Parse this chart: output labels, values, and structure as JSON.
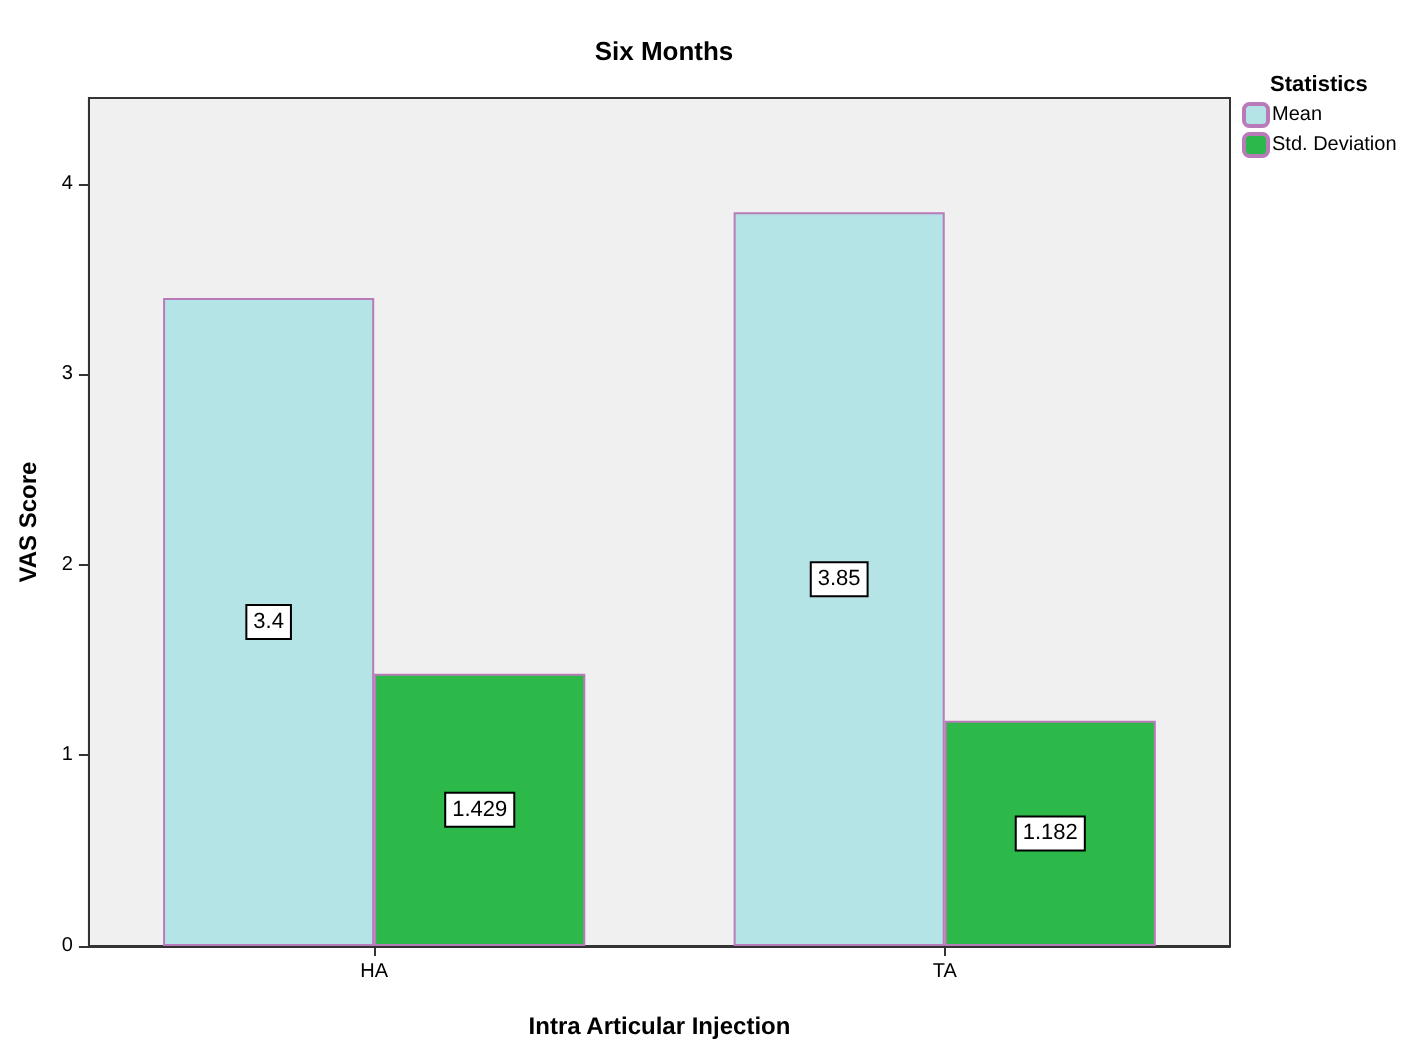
{
  "chart_data": {
    "type": "bar",
    "title": "Six Months",
    "xlabel": "Intra Articular Injection",
    "ylabel": "VAS Score",
    "legend_title": "Statistics",
    "categories": [
      "HA",
      "TA"
    ],
    "series": [
      {
        "name": "Mean",
        "color": "#b4e4e6",
        "values": [
          3.4,
          3.85
        ]
      },
      {
        "name": "Std. Deviation",
        "color": "#2db84a",
        "values": [
          1.429,
          1.182
        ]
      }
    ],
    "ylim": [
      0,
      4.45
    ],
    "yticks": [
      0,
      1,
      2,
      3,
      4
    ],
    "grid": false,
    "legend": "top right",
    "data_labels": true
  }
}
